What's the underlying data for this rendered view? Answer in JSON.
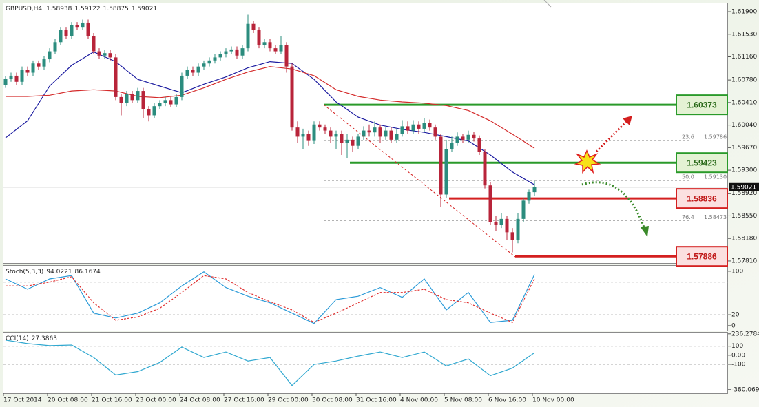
{
  "chart_data": [
    {
      "type": "candlestick",
      "title": "GBPUSD,H4",
      "categories": [
        "17 Oct 2014",
        null,
        null,
        null,
        null,
        null,
        null,
        null,
        "20 Oct 08:00",
        null,
        null,
        null,
        null,
        null,
        null,
        null,
        "21 Oct 16:00",
        null,
        null,
        null,
        null,
        null,
        null,
        null,
        "23 Oct 00:00",
        null,
        null,
        null,
        null,
        null,
        null,
        null,
        "24 Oct 08:00",
        null,
        null,
        null,
        null,
        null,
        null,
        null,
        "27 Oct 16:00",
        null,
        null,
        null,
        null,
        null,
        null,
        null,
        "29 Oct 00:00",
        null,
        null,
        null,
        null,
        null,
        null,
        null,
        "30 Oct 08:00",
        null,
        null,
        null,
        null,
        null,
        null,
        null,
        "31 Oct 16:00",
        null,
        null,
        null,
        null,
        null,
        null,
        null,
        "4 Nov 00:00",
        null,
        null,
        null,
        null,
        null,
        null,
        null,
        "5 Nov 08:00",
        null,
        null,
        null,
        null,
        null,
        null,
        null,
        "6 Nov 16:00",
        null,
        null,
        null,
        null,
        null,
        null,
        null,
        "10 Nov 00:00"
      ],
      "candles": [
        [
          1.607,
          1.6085,
          1.6065,
          1.608
        ],
        [
          1.608,
          1.609,
          1.6075,
          1.6085
        ],
        [
          1.6085,
          1.609,
          1.607,
          1.6075
        ],
        [
          1.6075,
          1.61,
          1.607,
          1.6095
        ],
        [
          1.6095,
          1.61,
          1.6085,
          1.609
        ],
        [
          1.609,
          1.611,
          1.6085,
          1.6105
        ],
        [
          1.6105,
          1.611,
          1.6095,
          1.61
        ],
        [
          1.61,
          1.6117,
          1.6095,
          1.6112
        ],
        [
          1.6112,
          1.613,
          1.6107,
          1.6125
        ],
        [
          1.6125,
          1.6145,
          1.612,
          1.614
        ],
        [
          1.614,
          1.6165,
          1.6135,
          1.616
        ],
        [
          1.616,
          1.6165,
          1.6145,
          1.615
        ],
        [
          1.615,
          1.6173,
          1.6145,
          1.6168
        ],
        [
          1.6168,
          1.6173,
          1.616,
          1.6165
        ],
        [
          1.6165,
          1.6177,
          1.616,
          1.6172
        ],
        [
          1.6172,
          1.6177,
          1.6145,
          1.615
        ],
        [
          1.615,
          1.6155,
          1.612,
          1.6125
        ],
        [
          1.6125,
          1.613,
          1.6113,
          1.6118
        ],
        [
          1.6118,
          1.6127,
          1.6113,
          1.6122
        ],
        [
          1.6122,
          1.6127,
          1.611,
          1.6115
        ],
        [
          1.6115,
          1.612,
          1.6045,
          1.605
        ],
        [
          1.605,
          1.6055,
          1.602,
          1.604
        ],
        [
          1.604,
          1.606,
          1.6035,
          1.6055
        ],
        [
          1.6055,
          1.606,
          1.604,
          1.6045
        ],
        [
          1.6045,
          1.6065,
          1.604,
          1.606
        ],
        [
          1.606,
          1.6065,
          1.6015,
          1.603
        ],
        [
          1.603,
          1.6035,
          1.601,
          1.602
        ],
        [
          1.602,
          1.604,
          1.6015,
          1.6035
        ],
        [
          1.6035,
          1.6045,
          1.603,
          1.604
        ],
        [
          1.604,
          1.605,
          1.6035,
          1.6045
        ],
        [
          1.6045,
          1.605,
          1.6033,
          1.6038
        ],
        [
          1.6038,
          1.6055,
          1.6033,
          1.605
        ],
        [
          1.605,
          1.609,
          1.6045,
          1.6085
        ],
        [
          1.6085,
          1.61,
          1.608,
          1.6095
        ],
        [
          1.6095,
          1.61,
          1.6085,
          1.609
        ],
        [
          1.609,
          1.6105,
          1.6085,
          1.61
        ],
        [
          1.61,
          1.611,
          1.6095,
          1.6105
        ],
        [
          1.6105,
          1.6115,
          1.61,
          1.611
        ],
        [
          1.611,
          1.612,
          1.6105,
          1.6115
        ],
        [
          1.6115,
          1.6125,
          1.611,
          1.612
        ],
        [
          1.612,
          1.613,
          1.6115,
          1.6125
        ],
        [
          1.6125,
          1.6133,
          1.612,
          1.6128
        ],
        [
          1.6128,
          1.6133,
          1.6113,
          1.6118
        ],
        [
          1.6118,
          1.6135,
          1.6113,
          1.613
        ],
        [
          1.613,
          1.6185,
          1.6125,
          1.617
        ],
        [
          1.617,
          1.6175,
          1.6155,
          1.616
        ],
        [
          1.616,
          1.6165,
          1.613,
          1.6135
        ],
        [
          1.6135,
          1.6145,
          1.613,
          1.614
        ],
        [
          1.614,
          1.6145,
          1.6125,
          1.613
        ],
        [
          1.613,
          1.6135,
          1.612,
          1.6125
        ],
        [
          1.6125,
          1.615,
          1.612,
          1.6135
        ],
        [
          1.6135,
          1.614,
          1.609,
          1.61
        ],
        [
          1.61,
          1.6105,
          1.5995,
          1.6
        ],
        [
          1.6,
          1.601,
          1.5975,
          1.5985
        ],
        [
          1.5985,
          1.5998,
          1.5965,
          1.599
        ],
        [
          1.599,
          1.5995,
          1.597,
          1.5978
        ],
        [
          1.5978,
          1.601,
          1.5973,
          1.6005
        ],
        [
          1.6005,
          1.601,
          1.5995,
          1.6
        ],
        [
          1.6,
          1.6005,
          1.599,
          1.5995
        ],
        [
          1.5995,
          1.6,
          1.5975,
          1.5985
        ],
        [
          1.5985,
          1.5995,
          1.5965,
          1.599
        ],
        [
          1.599,
          1.5995,
          1.5955,
          1.5975
        ],
        [
          1.5975,
          1.599,
          1.595,
          1.598
        ],
        [
          1.598,
          1.5985,
          1.596,
          1.597
        ],
        [
          1.597,
          1.599,
          1.5965,
          1.5985
        ],
        [
          1.5985,
          1.6002,
          1.598,
          1.5995
        ],
        [
          1.5995,
          1.6005,
          1.5985,
          1.5992
        ],
        [
          1.5992,
          1.601,
          1.5985,
          1.6
        ],
        [
          1.6,
          1.6005,
          1.5975,
          1.5985
        ],
        [
          1.5985,
          1.6,
          1.598,
          1.5995
        ],
        [
          1.5995,
          1.6,
          1.5975,
          1.598
        ],
        [
          1.598,
          1.5998,
          1.5975,
          1.599
        ],
        [
          1.599,
          1.6012,
          1.5985,
          1.6002
        ],
        [
          1.6002,
          1.601,
          1.599,
          1.5995
        ],
        [
          1.5995,
          1.6012,
          1.599,
          1.6005
        ],
        [
          1.6005,
          1.601,
          1.599,
          1.5998
        ],
        [
          1.5998,
          1.6015,
          1.5993,
          1.6008
        ],
        [
          1.6008,
          1.6013,
          1.5995,
          1.6
        ],
        [
          1.6,
          1.6005,
          1.598,
          1.5985
        ],
        [
          1.5985,
          1.599,
          1.587,
          1.589
        ],
        [
          1.589,
          1.598,
          1.5885,
          1.5965
        ],
        [
          1.5965,
          1.5985,
          1.596,
          1.5975
        ],
        [
          1.5975,
          1.5992,
          1.597,
          1.5985
        ],
        [
          1.5985,
          1.599,
          1.5975,
          1.598
        ],
        [
          1.598,
          1.5995,
          1.5975,
          1.5988
        ],
        [
          1.5988,
          1.5993,
          1.5977,
          1.5982
        ],
        [
          1.5982,
          1.5987,
          1.5955,
          1.596
        ],
        [
          1.596,
          1.5965,
          1.59,
          1.5905
        ],
        [
          1.5905,
          1.591,
          1.584,
          1.5845
        ],
        [
          1.5845,
          1.5855,
          1.583,
          1.584
        ],
        [
          1.584,
          1.586,
          1.5835,
          1.585
        ],
        [
          1.585,
          1.5855,
          1.5815,
          1.5828
        ],
        [
          1.5828,
          1.5835,
          1.5795,
          1.5815
        ],
        [
          1.5815,
          1.586,
          1.581,
          1.585
        ],
        [
          1.585,
          1.5885,
          1.5845,
          1.588
        ],
        [
          1.588,
          1.5898,
          1.5875,
          1.5894
        ],
        [
          1.58938,
          1.59122,
          1.58875,
          1.59021
        ]
      ],
      "bull_color": "#2b8c7e",
      "bear_color": "#b8243a",
      "series": [
        {
          "color": "#1c1ca0",
          "x": [
            0,
            4,
            8,
            12,
            16,
            20,
            24,
            28,
            32,
            36,
            40,
            44,
            48,
            52,
            56,
            60,
            64,
            68,
            72,
            76,
            80,
            84,
            88,
            92,
            96
          ],
          "values": [
            1.5983,
            1.6011,
            1.6068,
            1.6102,
            1.6124,
            1.6108,
            1.6079,
            1.6068,
            1.6057,
            1.6071,
            1.6083,
            1.6098,
            1.6108,
            1.6105,
            1.6079,
            1.6042,
            1.6017,
            1.6004,
            1.5997,
            1.5992,
            1.5985,
            1.5978,
            1.5955,
            1.5927,
            1.5906
          ]
        },
        {
          "color": "#d42a2a",
          "x": [
            0,
            4,
            8,
            12,
            16,
            20,
            24,
            28,
            32,
            36,
            40,
            44,
            48,
            52,
            56,
            60,
            64,
            68,
            72,
            76,
            80,
            84,
            88,
            92,
            96
          ],
          "values": [
            1.6051,
            1.6051,
            1.6053,
            1.606,
            1.6062,
            1.606,
            1.6051,
            1.6049,
            1.6053,
            1.6065,
            1.6079,
            1.6091,
            1.61,
            1.6096,
            1.6085,
            1.6062,
            1.6051,
            1.6045,
            1.6042,
            1.604,
            1.6036,
            1.6028,
            1.6011,
            1.5989,
            1.5966
          ]
        }
      ],
      "ylim": [
        1.57764,
        1.62036
      ],
      "yticks": [
        {
          "value": 1.619,
          "label": "1.61900"
        },
        {
          "value": 1.6153,
          "label": "1.61530"
        },
        {
          "value": 1.6116,
          "label": "1.61160"
        },
        {
          "value": 1.6078,
          "label": "1.60780"
        },
        {
          "value": 1.6041,
          "label": "1.60410"
        },
        {
          "value": 1.6004,
          "label": "1.60040"
        },
        {
          "value": 1.5967,
          "label": "1.59670"
        },
        {
          "value": 1.593,
          "label": "1.59300"
        },
        {
          "value": 1.5892,
          "label": "1.58920"
        },
        {
          "value": 1.5855,
          "label": "1.58550"
        },
        {
          "value": 1.5818,
          "label": "1.58180"
        },
        {
          "value": 1.5781,
          "label": "1.57810"
        }
      ],
      "levels": [
        {
          "value": 1.60373,
          "color": "#2a9a2a"
        },
        {
          "value": 1.59423,
          "color": "#2a9a2a"
        },
        {
          "value": 1.58836,
          "color": "#d42020"
        },
        {
          "value": 1.57886,
          "color": "#d42020"
        }
      ],
      "fib": [
        {
          "ratio": "23.6",
          "value": 1.59786
        },
        {
          "ratio": "50.0",
          "value": {
            "value": 1.5913,
            "label": "1.59130"
          }
        },
        {
          "ratio": "76.4",
          "value": 1.58473
        }
      ]
    },
    {
      "type": "line",
      "title": "Stoch(5,3,3)",
      "series": [
        {
          "color": "#2a9ad8",
          "x": [
            0,
            4,
            8,
            12,
            16,
            20,
            24,
            28,
            32,
            36,
            40,
            44,
            48,
            52,
            56,
            60,
            64,
            68,
            72,
            76,
            80,
            84,
            88,
            92,
            96
          ],
          "values": [
            86,
            67,
            86,
            92,
            23,
            14,
            23,
            42,
            73,
            99,
            70,
            54,
            42,
            23,
            4,
            48,
            54,
            70,
            52,
            86,
            29,
            61,
            6,
            10,
            94.0221
          ]
        },
        {
          "color": "#e03030",
          "dash": true,
          "x": [
            0,
            4,
            8,
            12,
            16,
            20,
            24,
            28,
            32,
            36,
            40,
            44,
            48,
            52,
            56,
            60,
            64,
            68,
            72,
            76,
            80,
            84,
            88,
            92,
            96
          ],
          "values": [
            73,
            73,
            80,
            90,
            42,
            10,
            16,
            32,
            61,
            92,
            86,
            61,
            44,
            29,
            6,
            23,
            42,
            61,
            61,
            67,
            48,
            42,
            23,
            6,
            86.1674
          ]
        }
      ],
      "ylim": [
        -9,
        110
      ],
      "yticks": [
        100,
        20,
        0
      ],
      "levels": [
        80,
        20
      ]
    },
    {
      "type": "line",
      "title": "CCI(14)",
      "series": [
        {
          "color": "#30a8d0",
          "x": [
            0,
            4,
            8,
            12,
            16,
            20,
            24,
            28,
            32,
            36,
            40,
            44,
            48,
            52,
            56,
            60,
            64,
            68,
            72,
            76,
            80,
            84,
            88,
            92,
            96
          ],
          "values": [
            167,
            129,
            106,
            113,
            -25,
            -218,
            -180,
            -80,
            90,
            -25,
            36,
            -64,
            -25,
            -334,
            -102,
            -64,
            -10,
            36,
            -25,
            36,
            -118,
            -41,
            -226,
            -141,
            27.3863
          ]
        }
      ],
      "ylim": [
        -420,
        250
      ],
      "yticks": [
        236.2784,
        100,
        {
          "value": 0,
          "label": "0.00"
        },
        -100,
        -380.0692
      ],
      "levels": [
        100,
        -100
      ]
    }
  ]
}
